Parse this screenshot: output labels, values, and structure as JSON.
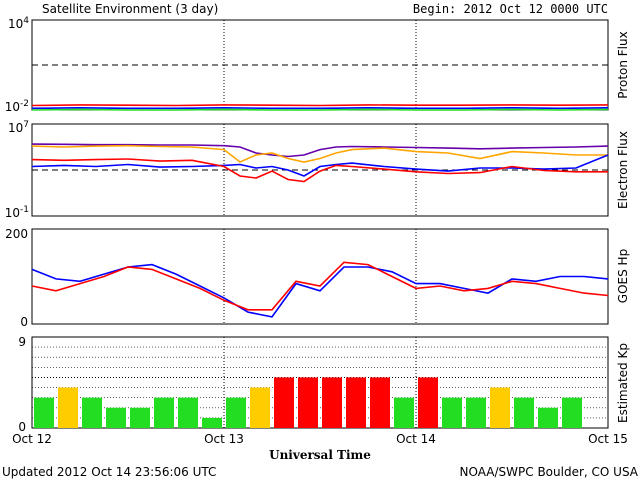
{
  "header": {
    "title": "Satellite Environment (3 day)",
    "begin": "Begin:  2012 Oct 12 0000 UTC"
  },
  "footer": {
    "updated": "Updated 2012 Oct 14 23:56:06 UTC",
    "credit": "NOAA/SWPC Boulder, CO USA"
  },
  "xaxis": {
    "label": "Universal Time",
    "ticks": [
      "Oct 12",
      "Oct 13",
      "Oct 14",
      "Oct 15"
    ]
  },
  "colors": {
    "red": "#ff0000",
    "blue": "#0000ff",
    "green": "#22dd22",
    "orange": "#ffa500",
    "purple": "#6600aa",
    "yellow": "#ffcc00"
  },
  "chart_data": [
    {
      "type": "line",
      "panel": "proton",
      "ylabel": "Proton Flux",
      "yscale": "log",
      "ylim": [
        0.01,
        10000
      ],
      "yticks": [
        "10^4",
        "10^-2"
      ],
      "threshold": 10,
      "x": [
        0,
        6,
        12,
        18,
        24,
        30,
        36,
        42,
        48,
        54,
        60,
        66,
        72
      ],
      "series": [
        {
          "color": "red",
          "values": [
            0.02,
            0.022,
            0.021,
            0.02,
            0.022,
            0.021,
            0.02,
            0.022,
            0.021,
            0.021,
            0.022,
            0.021,
            0.022
          ]
        },
        {
          "color": "blue",
          "values": [
            0.013,
            0.014,
            0.013,
            0.013,
            0.014,
            0.013,
            0.013,
            0.014,
            0.013,
            0.013,
            0.014,
            0.013,
            0.014
          ]
        },
        {
          "color": "green",
          "values": [
            0.01,
            0.011,
            0.01,
            0.01,
            0.011,
            0.01,
            0.01,
            0.011,
            0.01,
            0.01,
            0.011,
            0.01,
            0.011
          ]
        }
      ]
    },
    {
      "type": "line",
      "panel": "electron",
      "ylabel": "Electron Flux",
      "yscale": "log",
      "ylim": [
        0.1,
        10000000
      ],
      "yticks": [
        "10^7",
        "10^-1"
      ],
      "threshold": 1000,
      "x": [
        0,
        4,
        8,
        12,
        16,
        20,
        24,
        26,
        28,
        30,
        32,
        34,
        36,
        38,
        40,
        44,
        48,
        52,
        56,
        60,
        64,
        68,
        72
      ],
      "series": [
        {
          "color": "purple",
          "values": [
            180000,
            170000,
            160000,
            160000,
            150000,
            150000,
            130000,
            100000,
            30000,
            20000,
            15000,
            20000,
            60000,
            100000,
            110000,
            100000,
            90000,
            80000,
            70000,
            80000,
            90000,
            100000,
            120000
          ]
        },
        {
          "color": "orange",
          "values": [
            120000,
            100000,
            120000,
            130000,
            110000,
            100000,
            60000,
            5000,
            20000,
            30000,
            10000,
            5000,
            10000,
            30000,
            60000,
            80000,
            40000,
            30000,
            10000,
            40000,
            30000,
            20000,
            20000
          ]
        },
        {
          "color": "blue",
          "values": [
            2000,
            2500,
            2000,
            3000,
            1800,
            2000,
            2500,
            3000,
            1500,
            2000,
            1000,
            300,
            2000,
            3000,
            4000,
            2000,
            1200,
            800,
            1500,
            1500,
            1200,
            1500,
            20000
          ]
        },
        {
          "color": "red",
          "values": [
            8000,
            7000,
            8000,
            9000,
            6000,
            7000,
            2000,
            300,
            200,
            800,
            150,
            100,
            800,
            2500,
            2000,
            1200,
            700,
            500,
            600,
            2000,
            900,
            700,
            700
          ]
        }
      ]
    },
    {
      "type": "line",
      "panel": "goes",
      "ylabel": "GOES Hp",
      "ylim": [
        0,
        200
      ],
      "yticks": [
        "200",
        "0"
      ],
      "x": [
        0,
        3,
        6,
        9,
        12,
        15,
        18,
        21,
        24,
        27,
        30,
        33,
        36,
        39,
        42,
        45,
        48,
        51,
        54,
        57,
        60,
        63,
        66,
        69,
        72
      ],
      "series": [
        {
          "color": "blue",
          "values": [
            115,
            95,
            90,
            105,
            120,
            125,
            105,
            80,
            55,
            25,
            15,
            85,
            70,
            120,
            120,
            110,
            85,
            85,
            75,
            65,
            95,
            90,
            100,
            100,
            95
          ]
        },
        {
          "color": "red",
          "values": [
            80,
            70,
            85,
            100,
            120,
            115,
            95,
            75,
            50,
            30,
            30,
            90,
            80,
            130,
            125,
            100,
            75,
            80,
            70,
            75,
            90,
            85,
            75,
            65,
            60
          ]
        }
      ]
    },
    {
      "type": "bar",
      "panel": "kp",
      "ylabel": "Estimated Kp",
      "ylim": [
        0,
        9
      ],
      "yticks": [
        "9",
        "0"
      ],
      "values": [
        3,
        4,
        3,
        2,
        2,
        3,
        3,
        1,
        3,
        4,
        5,
        5,
        5,
        5,
        5,
        3,
        5,
        3,
        3,
        4,
        3,
        2,
        3
      ],
      "bar_colors": [
        "green",
        "yellow",
        "green",
        "green",
        "green",
        "green",
        "green",
        "green",
        "green",
        "yellow",
        "red",
        "red",
        "red",
        "red",
        "red",
        "green",
        "red",
        "green",
        "green",
        "yellow",
        "green",
        "green",
        "green"
      ]
    }
  ]
}
